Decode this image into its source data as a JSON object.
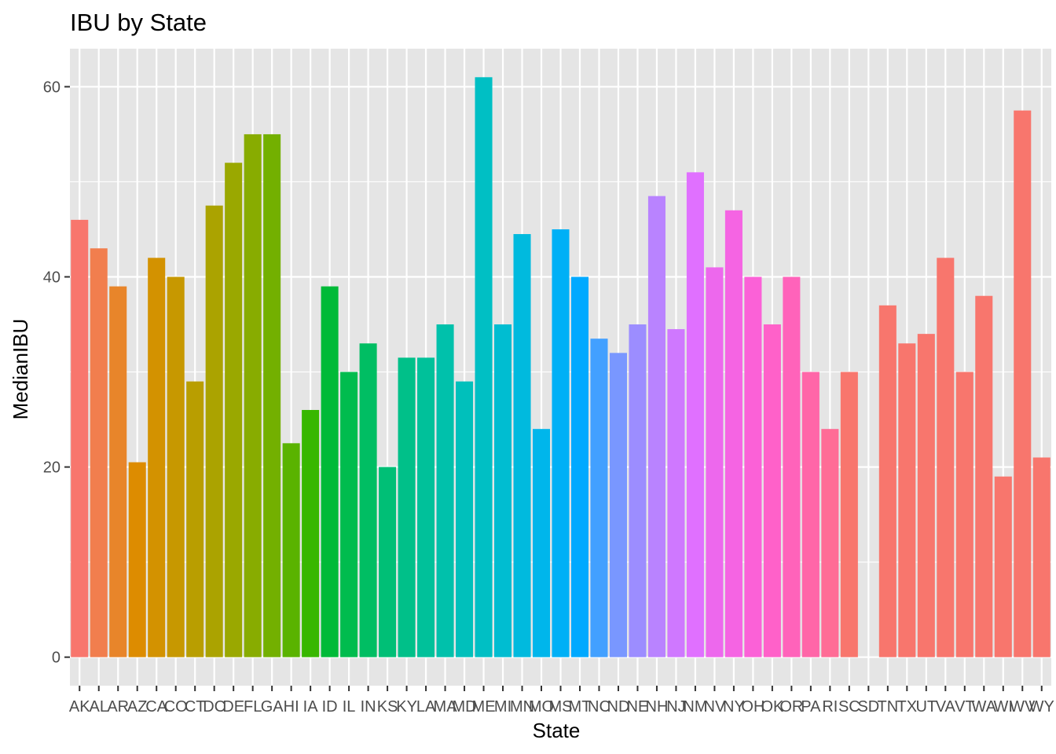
{
  "chart_data": {
    "type": "bar",
    "title": "IBU by State",
    "xlabel": "State",
    "ylabel": "MedianIBU",
    "ylim": [
      -3,
      64
    ],
    "yticks": [
      0,
      20,
      40,
      60
    ],
    "grid": true,
    "legend": "none",
    "background": "#e5e5e5",
    "categories": [
      "AK",
      "AL",
      "AR",
      "AZ",
      "CA",
      "CO",
      "CT",
      "DC",
      "DE",
      "FL",
      "GA",
      "HI",
      "IA",
      "ID",
      "IL",
      "IN",
      "KS",
      "KY",
      "LA",
      "MA",
      "MD",
      "ME",
      "MI",
      "MN",
      "MO",
      "MS",
      "MT",
      "NC",
      "ND",
      "NE",
      "NH",
      "NJ",
      "NM",
      "NV",
      "NY",
      "OH",
      "OK",
      "OR",
      "PA",
      "RI",
      "SC",
      "SD",
      "TN",
      "TX",
      "UT",
      "VA",
      "VT",
      "WA",
      "WI",
      "WV",
      "WY"
    ],
    "values": [
      46,
      43,
      39,
      20.5,
      42,
      40,
      29,
      47.5,
      52,
      55,
      55,
      22.5,
      26,
      39,
      30,
      33,
      20,
      31.5,
      31.5,
      35,
      29,
      61,
      35,
      44.5,
      24,
      45,
      40,
      33.5,
      32,
      35,
      48.5,
      34.5,
      51,
      41,
      47,
      40,
      35,
      40,
      30,
      24,
      30,
      null,
      37,
      33,
      34,
      42,
      30,
      38,
      19,
      57.5,
      21
    ],
    "colors": [
      "#F8766D",
      "#F17E4E",
      "#E8852A",
      "#DD8C00",
      "#D39200",
      "#C79800",
      "#B99E00",
      "#ABA300",
      "#9AA800",
      "#88AC00",
      "#73B000",
      "#5AB300",
      "#38B700",
      "#00BA38",
      "#00BC4E",
      "#00BE63",
      "#00BF76",
      "#00C089",
      "#00C19A",
      "#00C1AB",
      "#00C0BB",
      "#00BFC4",
      "#00BDD1",
      "#00BADE",
      "#00B6EB",
      "#00B0F6",
      "#00A9FF",
      "#42A0FF",
      "#7997FF",
      "#9C8DFF",
      "#B983FF",
      "#CF78FF",
      "#E070FF",
      "#ED68ED",
      "#F564E3",
      "#FB61D7",
      "#FF61C9",
      "#FF63BA",
      "#FF66A8",
      "#FF6C96",
      "#F8766D",
      "#F8766D",
      "#F8766D",
      "#F8766D",
      "#F8766D",
      "#F8766D",
      "#F8766D",
      "#F8766D",
      "#F8766D",
      "#F8766D",
      "#F8766D"
    ]
  }
}
